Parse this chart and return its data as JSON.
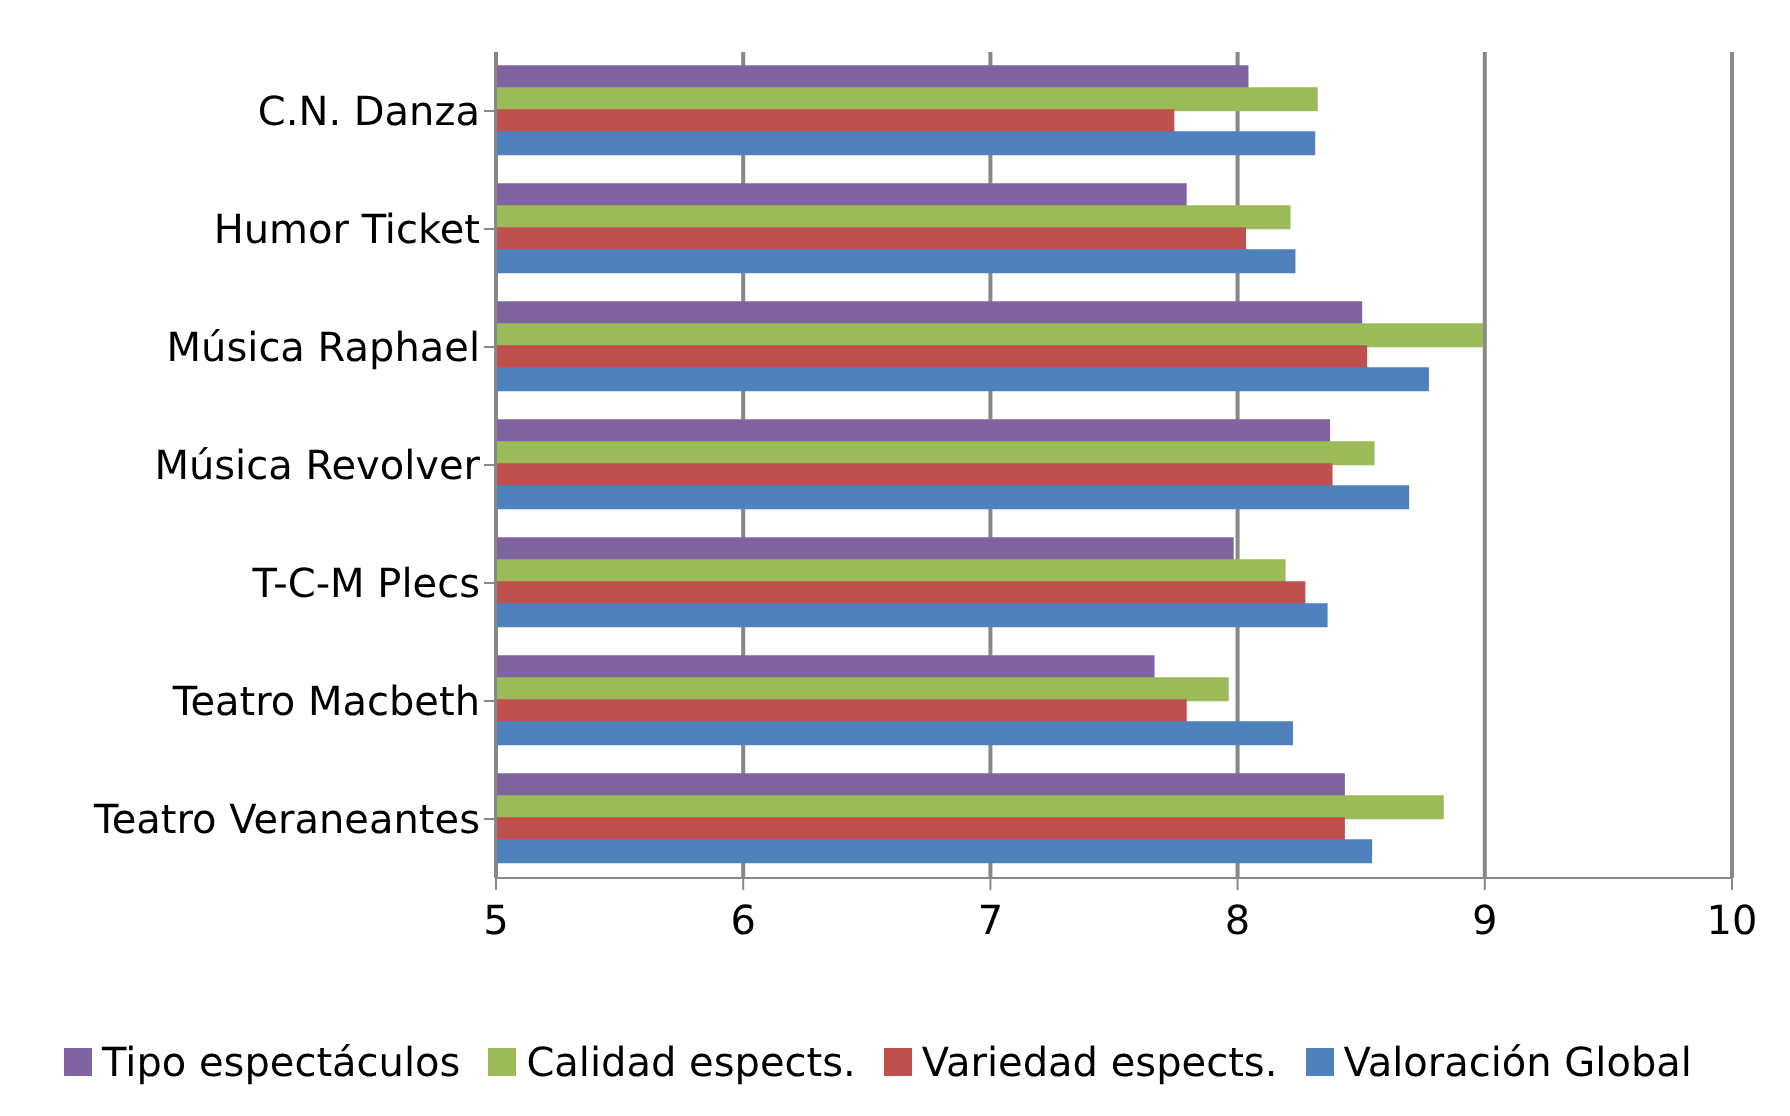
{
  "chart_data": {
    "type": "bar",
    "orientation": "horizontal",
    "categories": [
      "C.N. Danza",
      "Humor Ticket",
      "Música Raphael",
      "Música Revolver",
      "T-C-M Plecs",
      "Teatro Macbeth",
      "Teatro Veraneantes"
    ],
    "series": [
      {
        "name": "Tipo espectáculos",
        "color": "#8064a2",
        "values": [
          8.04,
          7.79,
          8.5,
          8.37,
          7.98,
          7.66,
          8.43
        ]
      },
      {
        "name": "Calidad espects.",
        "color": "#9bbb59",
        "values": [
          8.32,
          8.21,
          8.99,
          8.55,
          8.19,
          7.96,
          8.83
        ]
      },
      {
        "name": "Variedad espects.",
        "color": "#c0504d",
        "values": [
          7.74,
          8.03,
          8.52,
          8.38,
          8.27,
          7.79,
          8.43
        ]
      },
      {
        "name": "Valoración Global",
        "color": "#4f81bd",
        "values": [
          8.31,
          8.23,
          8.77,
          8.69,
          8.36,
          8.22,
          8.54
        ]
      }
    ],
    "xlim": [
      5,
      10
    ],
    "xticks": [
      5,
      6,
      7,
      8,
      9,
      10
    ],
    "grid": "x",
    "legend": "bottom"
  }
}
